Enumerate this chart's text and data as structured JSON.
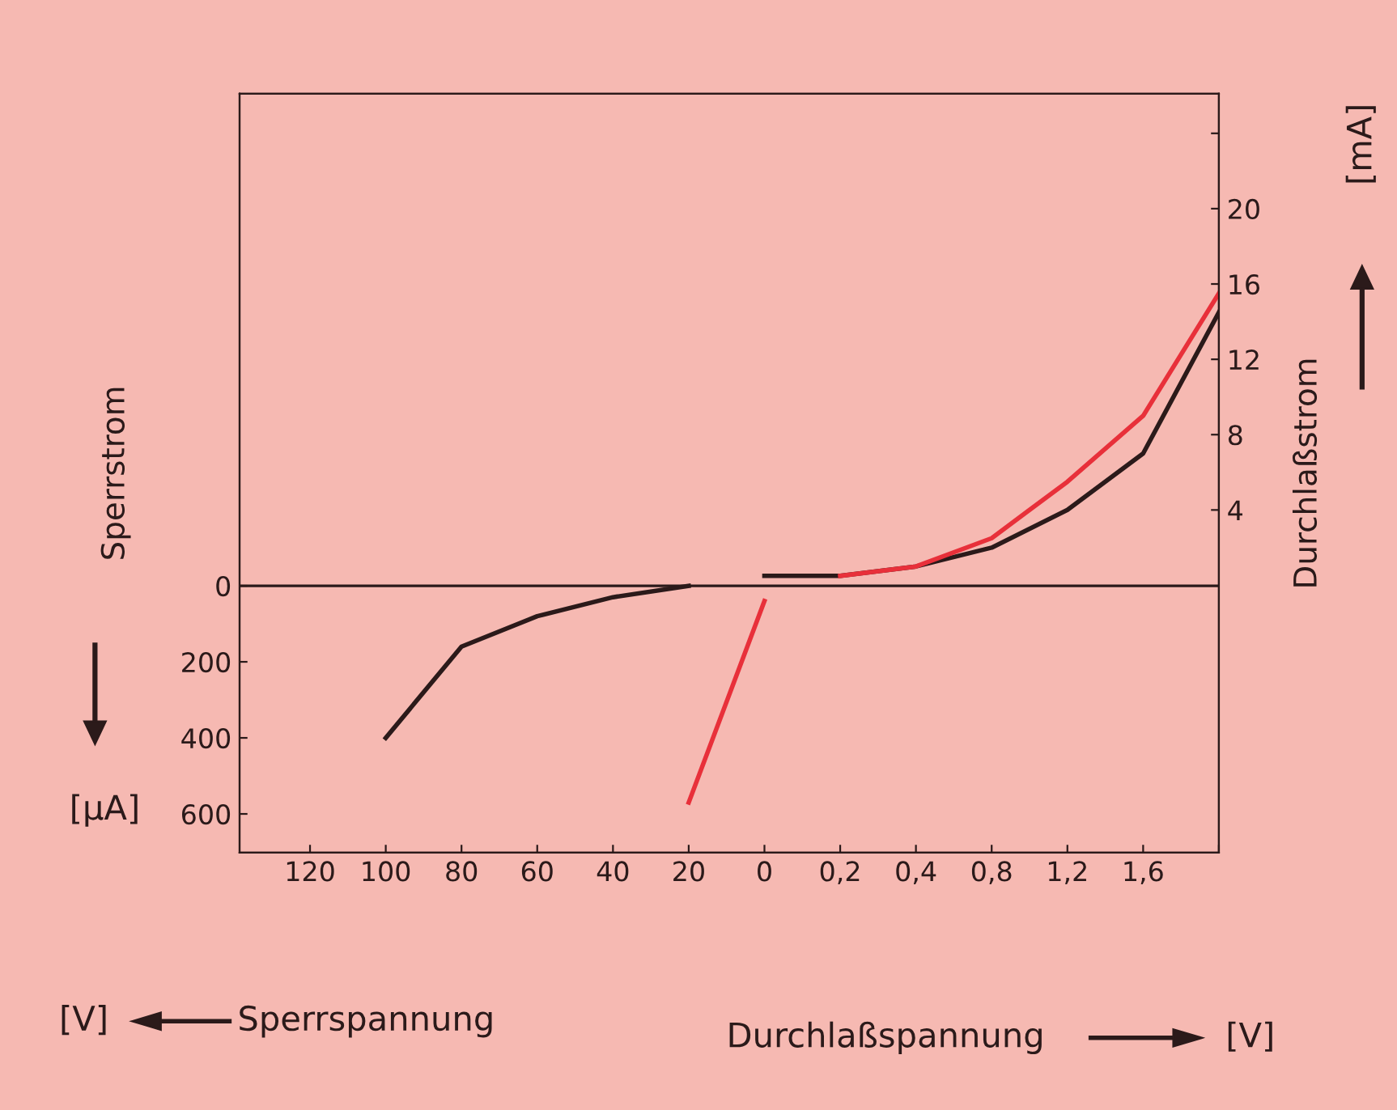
{
  "chart_data": {
    "type": "line",
    "ylabel": "Sperrstrom",
    "y2label": "Durchlaßstrom",
    "annotations": [
      "[μA]",
      "[mA]",
      "[V]",
      "Sperrspannung",
      "Durchlaßspannung",
      "[V]"
    ],
    "categories": [
      "120",
      "100",
      "80",
      "60",
      "40",
      "20",
      "0",
      "0,2",
      "0,4",
      "0,8",
      "1,2",
      "1,6",
      null
    ],
    "ylim": [
      702,
      -1294
    ],
    "yticks": [
      0,
      200,
      400,
      600
    ],
    "y2lim": [
      -14.2,
      26.1
    ],
    "y2ticks": [
      4,
      8,
      12,
      16,
      20,
      {
        "value": 24,
        "label": null
      }
    ],
    "ref_lines": [
      {
        "axis": "y",
        "value": 0,
        "color": "#2b1a1a"
      }
    ],
    "grid": false,
    "legend": false,
    "marker": "none",
    "line_style": "solid",
    "series": [
      {
        "color": "#2b1a1a",
        "axis": "y",
        "values": [
          null,
          400,
          160,
          80,
          30,
          0,
          null,
          null,
          null,
          null,
          null,
          null,
          null
        ]
      },
      {
        "color": "#2b1a1a",
        "axis": "y2",
        "values": [
          null,
          null,
          null,
          null,
          null,
          null,
          0.5,
          0.5,
          1,
          2,
          4,
          7,
          14.5
        ]
      },
      {
        "color": "#e8303a",
        "axis": "y",
        "values": [
          null,
          null,
          null,
          null,
          null,
          570,
          40,
          null,
          null,
          null,
          null,
          null,
          null
        ]
      },
      {
        "color": "#e8303a",
        "axis": "y2",
        "values": [
          null,
          null,
          null,
          null,
          null,
          null,
          null,
          0.5,
          1,
          2.5,
          5.5,
          9,
          15.5
        ]
      }
    ]
  }
}
